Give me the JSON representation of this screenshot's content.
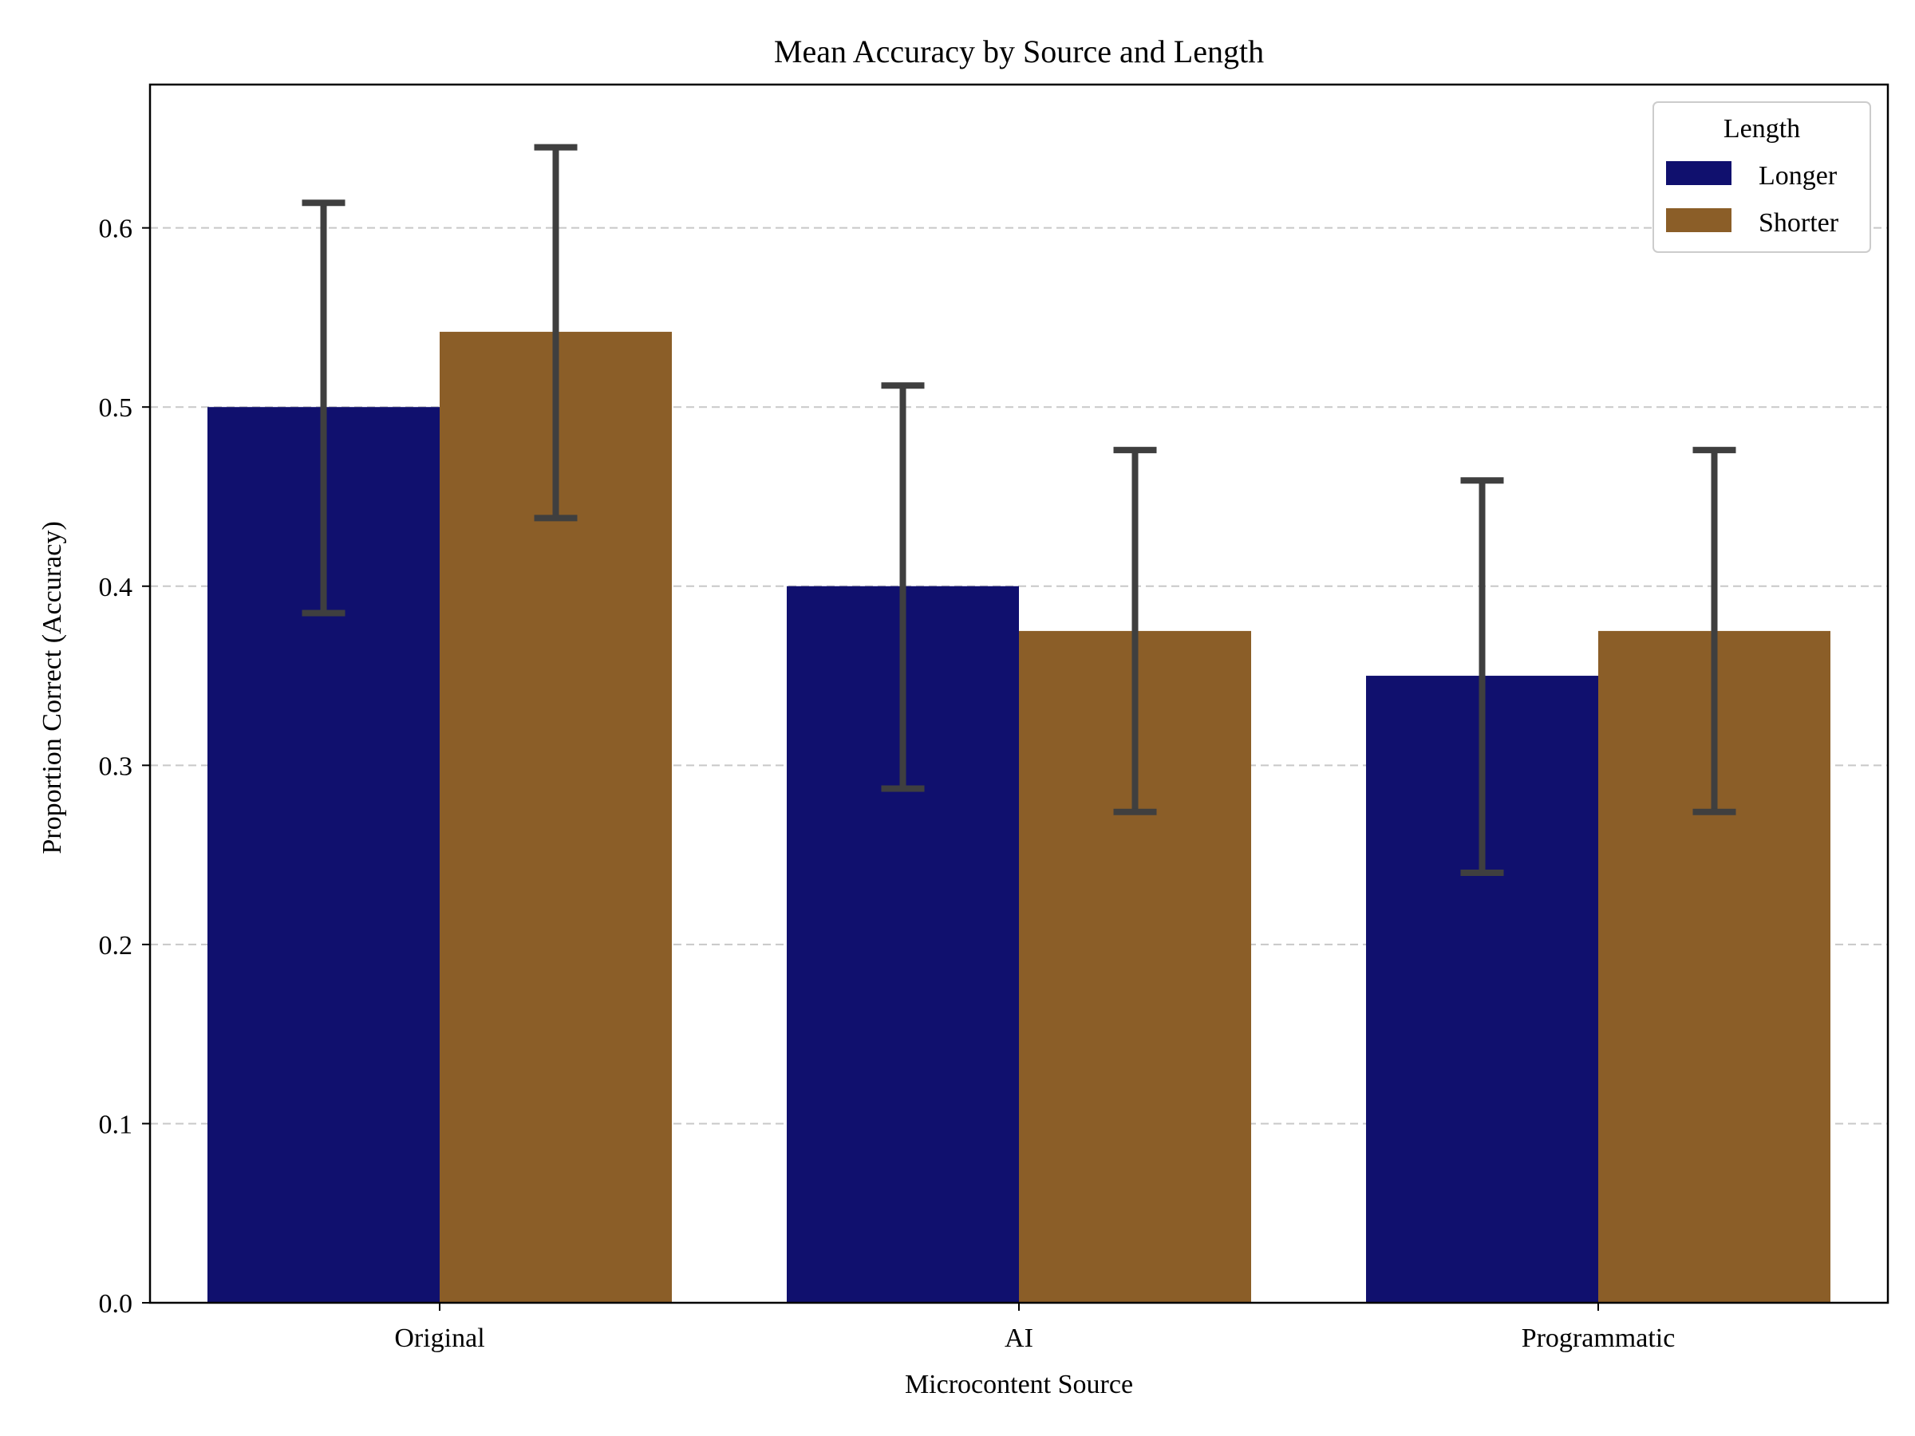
{
  "chart_data": {
    "type": "bar",
    "title": "Mean Accuracy by Source and Length",
    "xlabel": "Microcontent Source",
    "ylabel": "Proportion Correct (Accuracy)",
    "categories": [
      "Original",
      "AI",
      "Programmatic"
    ],
    "ylim": [
      0,
      0.68
    ],
    "yticks": [
      0.0,
      0.1,
      0.2,
      0.3,
      0.4,
      0.5,
      0.6
    ],
    "ytick_labels": [
      "0.0",
      "0.1",
      "0.2",
      "0.3",
      "0.4",
      "0.5",
      "0.6"
    ],
    "grid": true,
    "grid_axis": "y",
    "legend_title": "Length",
    "legend_position": "top-right",
    "series": [
      {
        "name": "Longer",
        "color": "#10106e",
        "values": [
          0.5,
          0.4,
          0.35
        ],
        "error_low": [
          0.385,
          0.287,
          0.24
        ],
        "error_high": [
          0.614,
          0.512,
          0.459
        ]
      },
      {
        "name": "Shorter",
        "color": "#8b5e28",
        "values": [
          0.542,
          0.375,
          0.375
        ],
        "error_low": [
          0.438,
          0.274,
          0.274
        ],
        "error_high": [
          0.645,
          0.476,
          0.476
        ]
      }
    ],
    "errorbar_color": "#3f3f3f"
  }
}
